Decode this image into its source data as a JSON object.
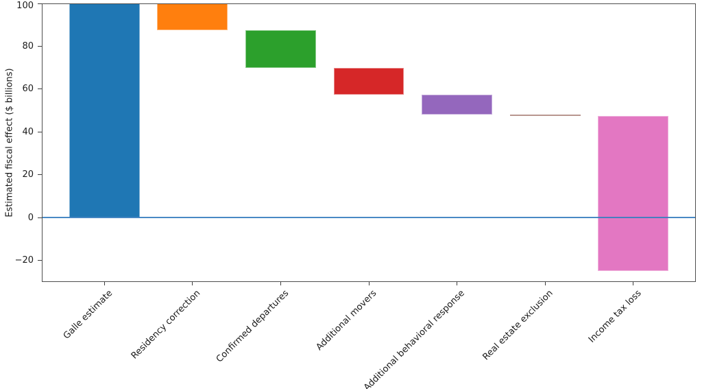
{
  "figure": {
    "title": "",
    "colors": {
      "background": "#ffffff",
      "spine": "#4d4d4d",
      "tick_mark": "#3d3d3d",
      "text": "#1a1a1a",
      "zero_line": "#3a7fbf"
    }
  },
  "chart_data": {
    "type": "bar",
    "subtype": "waterfall",
    "title": "",
    "xlabel": "",
    "ylabel": "Estimated fiscal effect ($ billions)",
    "ylim": [
      -30,
      100
    ],
    "ytick_values": [
      100,
      80,
      60,
      40,
      20,
      0,
      -20
    ],
    "ytick_labels": [
      "100",
      "80",
      "60",
      "40",
      "20",
      "0",
      "−20"
    ],
    "grid": false,
    "legend": null,
    "zero_line_value": 0,
    "bar_width_fraction": 0.8,
    "categories": [
      "Galle estimate",
      "Residency correction",
      "Confirmed departures",
      "Additional movers",
      "Additional behavioral response",
      "Real estate exclusion",
      "Income tax loss"
    ],
    "bars": [
      {
        "label": "Galle estimate",
        "start": 0,
        "end": 100,
        "delta": 100,
        "color": "#1f77b4"
      },
      {
        "label": "Residency correction",
        "start": 100,
        "end": 87.5,
        "delta": -12.5,
        "color": "#ff7f0e"
      },
      {
        "label": "Confirmed departures",
        "start": 87.5,
        "end": 70,
        "delta": -17.5,
        "color": "#2ca02c"
      },
      {
        "label": "Additional movers",
        "start": 70,
        "end": 57.5,
        "delta": -12.5,
        "color": "#d62728"
      },
      {
        "label": "Additional behavioral response",
        "start": 57.5,
        "end": 48,
        "delta": -9.5,
        "color": "#9467bd"
      },
      {
        "label": "Real estate exclusion",
        "start": 48,
        "end": 47.5,
        "delta": -0.5,
        "color": "#8c564b"
      },
      {
        "label": "Income tax loss",
        "start": 47.5,
        "end": -25,
        "delta": -72.5,
        "color": "#e377c2"
      }
    ]
  }
}
